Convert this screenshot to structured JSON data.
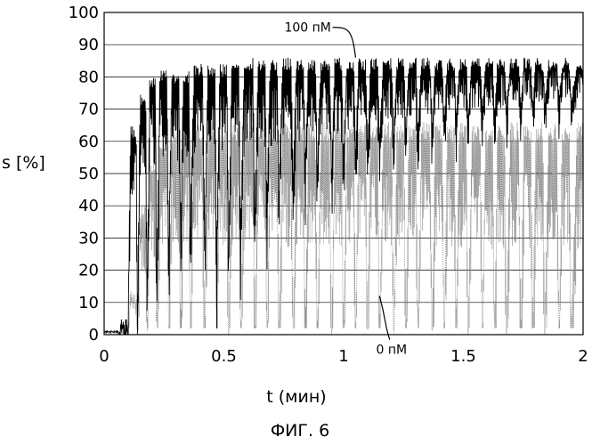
{
  "chart_data": {
    "type": "line",
    "title": "",
    "caption": "ФИГ. 6",
    "xlabel": "t (мин)",
    "ylabel": "s [%]",
    "xlim": [
      0,
      2
    ],
    "ylim": [
      0,
      100
    ],
    "x_ticks": [
      "0",
      "0.5",
      "1",
      "1.5",
      "2"
    ],
    "y_ticks": [
      "0",
      "10",
      "20",
      "30",
      "40",
      "50",
      "60",
      "70",
      "80",
      "90",
      "100"
    ],
    "grid": "horizontal",
    "series": [
      {
        "name": "100 пМ",
        "color": "#000000",
        "style": "dense oscillating",
        "pulse_times": [
          0.06,
          0.1,
          0.14,
          0.18,
          0.22,
          0.27,
          0.32,
          0.36,
          0.42,
          0.47,
          0.52,
          0.57,
          0.63,
          0.68,
          0.73,
          0.79,
          0.84,
          0.89,
          0.95,
          1.0,
          1.05,
          1.1,
          1.15,
          1.21,
          1.26,
          1.31,
          1.37,
          1.42,
          1.47,
          1.52,
          1.58,
          1.63,
          1.68,
          1.74,
          1.79,
          1.84,
          1.9,
          1.95
        ],
        "pulse_minima": [
          0,
          5,
          10,
          16,
          22,
          31,
          35,
          37,
          28,
          27,
          30,
          37,
          40,
          44,
          47,
          52,
          54,
          55,
          52,
          57,
          58,
          60,
          63,
          63,
          65,
          66,
          66,
          68,
          68,
          69,
          70,
          70,
          71,
          72,
          73,
          73,
          74,
          74
        ],
        "plateau_max": [
          5,
          65,
          75,
          80,
          82,
          82,
          82,
          84,
          84,
          84,
          85,
          86,
          86,
          86,
          86,
          86,
          86,
          86,
          86,
          86,
          86,
          86,
          86,
          86,
          86,
          86,
          86,
          86,
          86,
          86,
          86,
          86,
          86,
          86,
          86,
          86,
          86,
          86
        ]
      },
      {
        "name": "0 пМ",
        "color": "#808080",
        "style": "dense oscillating dotted",
        "pulse_times": [
          0.06,
          0.1,
          0.14,
          0.18,
          0.22,
          0.27,
          0.32,
          0.36,
          0.42,
          0.47,
          0.52,
          0.57,
          0.63,
          0.68,
          0.73,
          0.79,
          0.84,
          0.89,
          0.95,
          1.0,
          1.05,
          1.1,
          1.15,
          1.21,
          1.26,
          1.31,
          1.37,
          1.42,
          1.47,
          1.52,
          1.58,
          1.63,
          1.68,
          1.74,
          1.79,
          1.84,
          1.9,
          1.95
        ],
        "pulse_minima": [
          0,
          1,
          1,
          2,
          2,
          2,
          2,
          2,
          2,
          2,
          2,
          2,
          2,
          2,
          2,
          2,
          2,
          2,
          2,
          2,
          2,
          2,
          2,
          2,
          2,
          2,
          2,
          2,
          2,
          2,
          2,
          2,
          2,
          2,
          2,
          2,
          2,
          2
        ],
        "plateau_max": [
          0,
          15,
          40,
          55,
          62,
          65,
          66,
          66,
          66,
          66,
          66,
          66,
          66,
          66,
          66,
          66,
          66,
          66,
          66,
          66,
          66,
          66,
          66,
          66,
          66,
          66,
          66,
          66,
          66,
          66,
          66,
          66,
          66,
          66,
          66,
          66,
          66,
          66
        ]
      }
    ],
    "annotations": [
      {
        "text": "100 пМ",
        "x": 1.05,
        "y": 86,
        "label_x": 0.85,
        "label_y": 94
      },
      {
        "text": "0 пМ",
        "x": 1.15,
        "y": 12,
        "label_x": 1.2,
        "label_y": -6
      }
    ]
  }
}
